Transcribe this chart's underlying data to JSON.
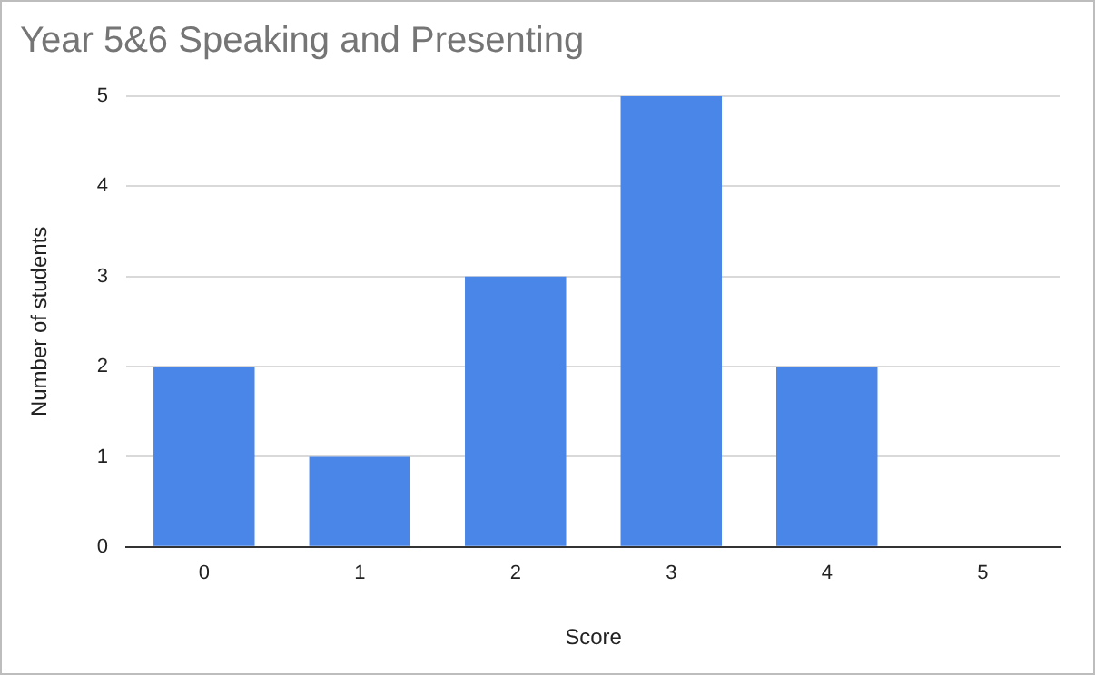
{
  "chart_data": {
    "type": "bar",
    "title": "Year 5&6 Speaking and Presenting",
    "xlabel": "Score",
    "ylabel": "Number of students",
    "categories": [
      "0",
      "1",
      "2",
      "3",
      "4",
      "5"
    ],
    "values": [
      2,
      1,
      3,
      5,
      2,
      0
    ],
    "color": "#4a86e8",
    "ylim": [
      0,
      5
    ],
    "yticks": [
      0,
      1,
      2,
      3,
      4,
      5
    ],
    "grid": "y"
  }
}
